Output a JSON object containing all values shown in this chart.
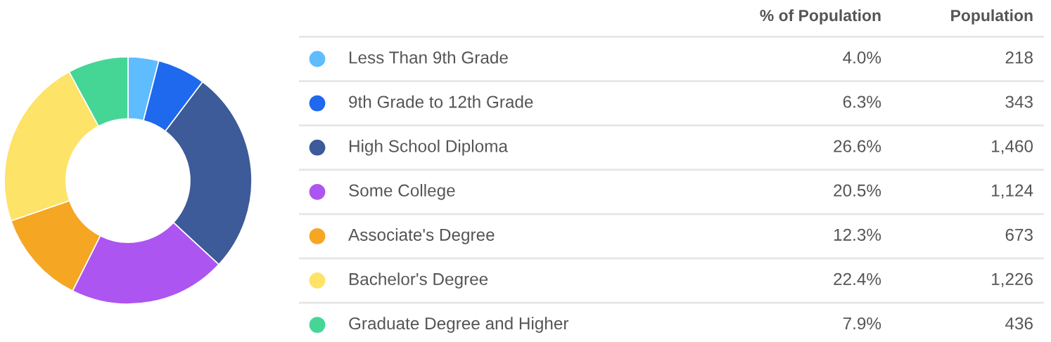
{
  "chart_data": {
    "type": "donut",
    "categories": [
      "Less Than 9th Grade",
      "9th Grade to 12th Grade",
      "High School Diploma",
      "Some College",
      "Associate's Degree",
      "Bachelor's Degree",
      "Graduate Degree and Higher"
    ],
    "values": [
      4.0,
      6.3,
      26.6,
      20.5,
      12.3,
      22.4,
      7.9
    ],
    "colors": [
      "#5ebcff",
      "#1e69ee",
      "#3d5a99",
      "#ad55f0",
      "#f5a623",
      "#fde367",
      "#45d695"
    ],
    "value_labels": [
      "4.0%",
      "6.3%",
      "26.6%",
      "20.5%",
      "12.3%",
      "22.4%",
      "7.9%"
    ],
    "annotations": [
      "% of Population",
      "Population",
      "218",
      "343",
      "1,460",
      "1,124",
      "673",
      "1,226",
      "436"
    ],
    "legend": "right"
  }
}
